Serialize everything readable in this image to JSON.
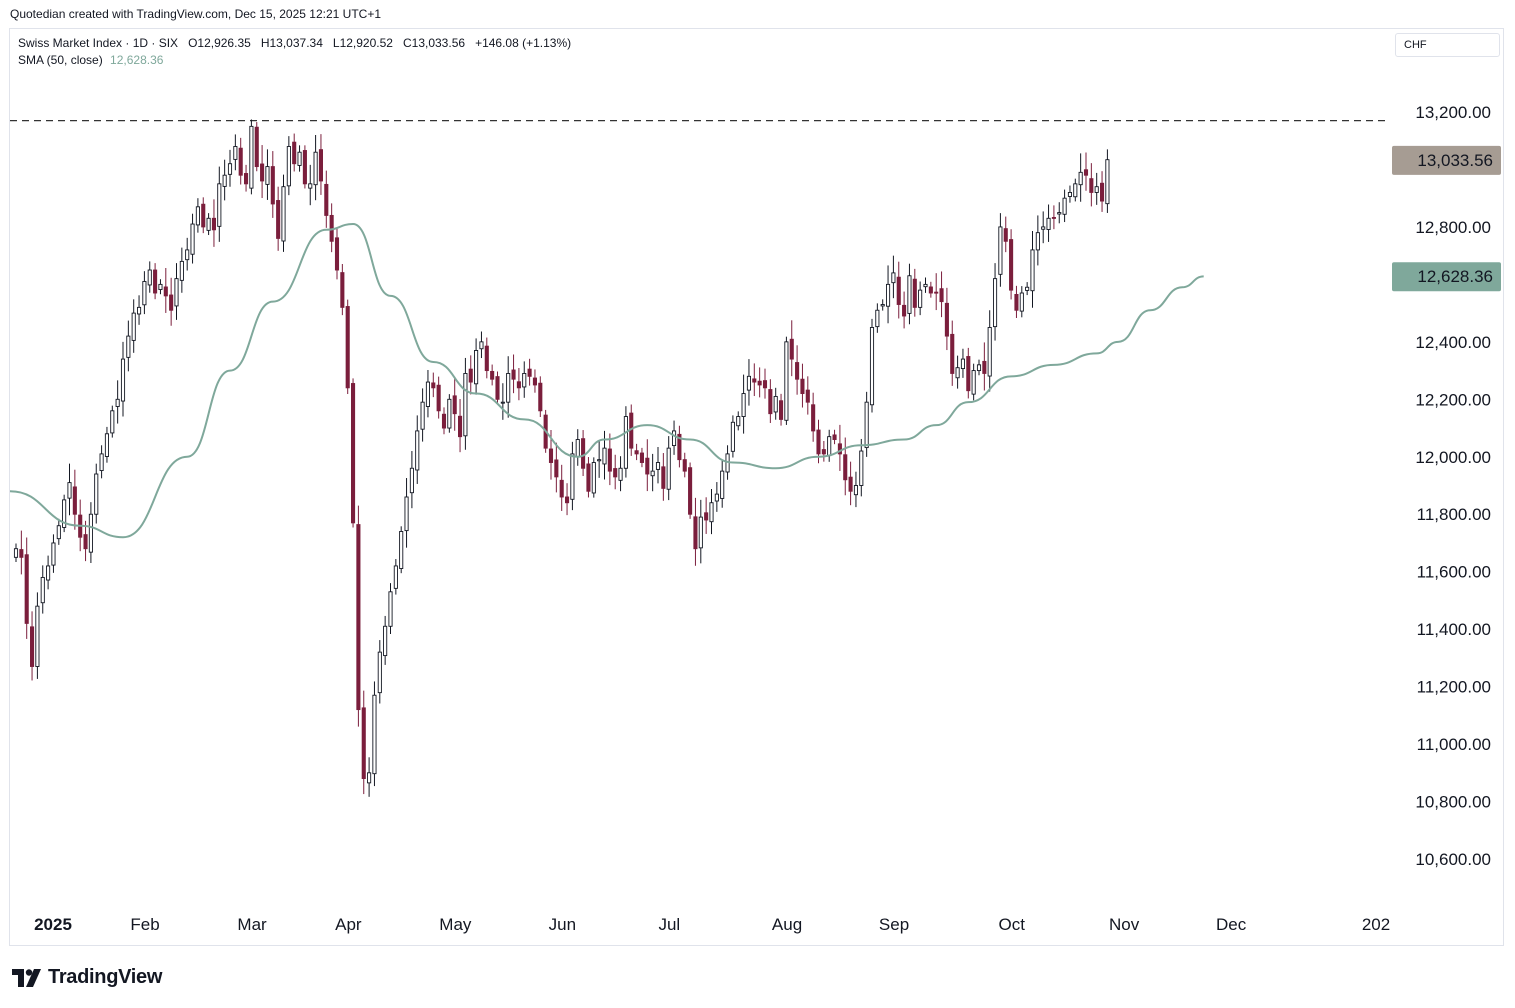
{
  "caption": "Quotedian created with TradingView.com, Dec 15, 2025 12:21 UTC+1",
  "legend": {
    "symbol": "Swiss Market Index · 1D · SIX",
    "open_label": "O",
    "open": "12,926.35",
    "high_label": "H",
    "high": "13,037.34",
    "low_label": "L",
    "low": "12,920.52",
    "close_label": "C",
    "close": "13,033.56",
    "change": "+146.08 (+1.13%)",
    "sma_label": "SMA (50, close)",
    "sma_value": "12,628.36"
  },
  "currency": "CHF",
  "brand": "TradingView",
  "colors": {
    "up": "#131722",
    "down": "#7b1e3c",
    "sma": "#7fa89b",
    "price_badge": "#a69c93",
    "sma_badge": "#7fa89b",
    "resistance": "#333333"
  },
  "chart_data": {
    "type": "candlestick",
    "y_axis_ticks": [
      "10,600.00",
      "10,800.00",
      "11,000.00",
      "11,200.00",
      "11,400.00",
      "11,600.00",
      "11,800.00",
      "12,000.00",
      "12,200.00",
      "12,400.00",
      "12,800.00",
      "13,200.00"
    ],
    "y_range": [
      10450,
      13380
    ],
    "x_axis_labels": [
      "2025",
      "Feb",
      "Mar",
      "Apr",
      "May",
      "Jun",
      "Jul",
      "Aug",
      "Sep",
      "Oct",
      "Nov",
      "Dec",
      "202"
    ],
    "price_badge": "13,033.56",
    "sma_badge": "12,628.36",
    "resistance_level": 13170,
    "closes": [
      11680,
      11650,
      11420,
      11270,
      11480,
      11580,
      11620,
      11700,
      11760,
      11850,
      11910,
      11800,
      11720,
      11680,
      11800,
      11940,
      12010,
      12080,
      12160,
      12200,
      12340,
      12420,
      12500,
      12520,
      12610,
      12650,
      12570,
      12600,
      12560,
      12510,
      12620,
      12680,
      12720,
      12810,
      12870,
      12800,
      12830,
      12790,
      12950,
      12980,
      13020,
      13080,
      12980,
      12950,
      13150,
      13010,
      12960,
      13010,
      12880,
      12760,
      12940,
      13080,
      13020,
      13060,
      12950,
      12950,
      13060,
      12960,
      12840,
      12750,
      12650,
      12520,
      12240,
      11770,
      11120,
      10880,
      10900,
      11170,
      11320,
      11410,
      11530,
      11620,
      11740,
      11860,
      11960,
      12090,
      12190,
      12260,
      12240,
      12160,
      12100,
      12200,
      12150,
      12070,
      12290,
      12260,
      12370,
      12400,
      12300,
      12270,
      12200,
      12190,
      12290,
      12270,
      12240,
      12290,
      12280,
      12250,
      12160,
      12030,
      11980,
      11930,
      11860,
      11840,
      12010,
      12060,
      11960,
      11880,
      11980,
      11990,
      12030,
      11950,
      11930,
      11960,
      12140,
      12030,
      12010,
      11980,
      11940,
      11950,
      11980,
      11890,
      12030,
      12090,
      11990,
      11950,
      11800,
      11680,
      11790,
      11780,
      11840,
      11870,
      11950,
      12010,
      12120,
      12140,
      12220,
      12280,
      12260,
      12250,
      12240,
      12150,
      12210,
      12130,
      12400,
      12340,
      12270,
      12220,
      12190,
      12090,
      12010,
      12010,
      12070,
      12060,
      12010,
      11920,
      11880,
      11900,
      12020,
      12190,
      12450,
      12510,
      12530,
      12600,
      12640,
      12530,
      12490,
      12630,
      12520,
      12580,
      12600,
      12570,
      12570,
      12540,
      12420,
      12290,
      12310,
      12340,
      12230,
      12300,
      12320,
      12290,
      12450,
      12620,
      12800,
      12750,
      12580,
      12510,
      12570,
      12590,
      12720,
      12780,
      12800,
      12830,
      12830,
      12850,
      12900,
      12920,
      12950,
      12990,
      12980,
      12920,
      12940,
      12890,
      13034
    ],
    "sma_points": [
      [
        0,
        11880
      ],
      [
        12,
        11760
      ],
      [
        20,
        11720
      ],
      [
        32,
        12000
      ],
      [
        40,
        12300
      ],
      [
        48,
        12540
      ],
      [
        58,
        12790
      ],
      [
        63,
        12810
      ],
      [
        70,
        12560
      ],
      [
        78,
        12330
      ],
      [
        86,
        12220
      ],
      [
        95,
        12130
      ],
      [
        105,
        12000
      ],
      [
        110,
        12060
      ],
      [
        118,
        12110
      ],
      [
        126,
        12060
      ],
      [
        134,
        11980
      ],
      [
        142,
        11960
      ],
      [
        150,
        12000
      ],
      [
        158,
        12040
      ],
      [
        166,
        12060
      ],
      [
        172,
        12110
      ],
      [
        178,
        12190
      ],
      [
        186,
        12280
      ],
      [
        194,
        12320
      ],
      [
        202,
        12360
      ],
      [
        206,
        12400
      ],
      [
        212,
        12510
      ],
      [
        218,
        12590
      ],
      [
        222,
        12628
      ]
    ],
    "month_index": {
      "2025": 0,
      "Feb": 23,
      "Mar": 43,
      "Apr": 61,
      "May": 81,
      "Jun": 101,
      "Jul": 121,
      "Aug": 143,
      "Sep": 163,
      "Oct": 185,
      "Nov": 206,
      "Dec": 226,
      "202": 248
    }
  }
}
